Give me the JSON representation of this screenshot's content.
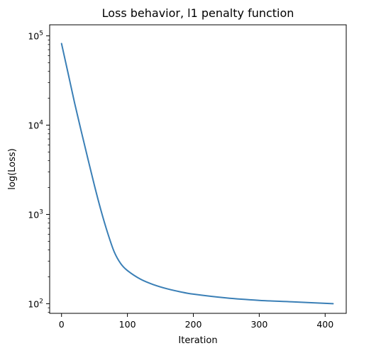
{
  "chart_data": {
    "type": "line",
    "title": "Loss behavior, l1 penalty function",
    "xlabel": "Iteration",
    "ylabel": "log(Loss)",
    "xlim": [
      -18,
      432
    ],
    "ylim": [
      78,
      133000
    ],
    "yscale": "log",
    "grid": false,
    "legend": "none",
    "x_ticks": [
      0,
      100,
      200,
      300,
      400
    ],
    "x_tick_labels": [
      "0",
      "100",
      "200",
      "300",
      "400"
    ],
    "y_ticks": [
      100,
      1000,
      10000,
      100000
    ],
    "y_tick_labels": [
      {
        "base": "10",
        "exp": "2"
      },
      {
        "base": "10",
        "exp": "3"
      },
      {
        "base": "10",
        "exp": "4"
      },
      {
        "base": "10",
        "exp": "5"
      }
    ],
    "series": [
      {
        "color": "#3a7fb6",
        "x": [
          0,
          10,
          20,
          30,
          40,
          50,
          60,
          70,
          80,
          90,
          100,
          120,
          140,
          160,
          180,
          200,
          250,
          300,
          350,
          412
        ],
        "y": [
          82000,
          38000,
          17500,
          8500,
          4200,
          2100,
          1100,
          620,
          380,
          280,
          235,
          188,
          163,
          147,
          136,
          128,
          116,
          109,
          105,
          100
        ]
      }
    ]
  }
}
